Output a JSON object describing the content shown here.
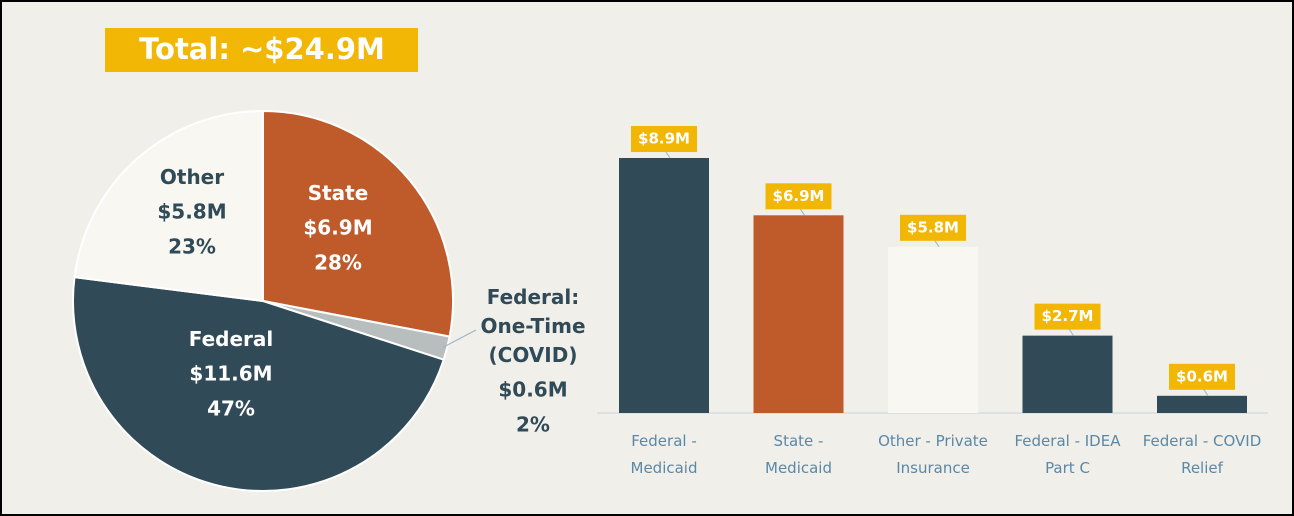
{
  "chart_data": [
    {
      "type": "pie",
      "title": "Total: ~$24.9M",
      "categories": [
        "State",
        "Federal: One-Time (COVID)",
        "Federal",
        "Other"
      ],
      "values": [
        28,
        2,
        47,
        23
      ],
      "value_labels": [
        "28%",
        "2%",
        "47%",
        "23%"
      ],
      "amounts": [
        6900000,
        600000,
        11600000,
        5800000
      ],
      "amount_labels": [
        "$6.9M",
        "$0.6M",
        "$11.6M",
        "$5.8M"
      ],
      "colors": [
        "#bf5a2a",
        "#b8bdbe",
        "#304a57",
        "#f8f7f1"
      ]
    },
    {
      "type": "bar",
      "categories": [
        "Federal - Medicaid",
        "State - Medicaid",
        "Other - Private Insurance",
        "Federal - IDEA Part C",
        "Federal - COVID Relief"
      ],
      "values": [
        8900000,
        6900000,
        5800000,
        2700000,
        600000
      ],
      "value_labels": [
        "$8.9M",
        "$6.9M",
        "$5.8M",
        "$2.7M",
        "$0.6M"
      ],
      "colors": [
        "#304a57",
        "#bf5a2a",
        "#f8f7f1",
        "#304a57",
        "#304a57"
      ]
    }
  ]
}
